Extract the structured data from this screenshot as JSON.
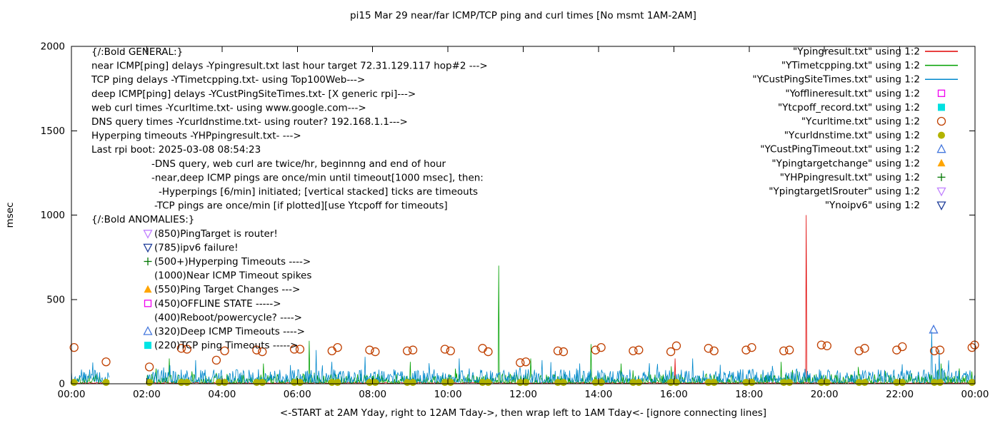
{
  "chart_data": {
    "type": "line",
    "title": "pi15 Mar 29 near/far ICMP/TCP ping and curl times [No msmt 1AM-2AM]",
    "xlabel": "<-START at 2AM Yday, right to 12AM Tday->, then wrap left to 1AM Tday<- [ignore connecting lines]",
    "ylabel": "msec",
    "xlim": [
      0,
      24
    ],
    "ylim": [
      0,
      2000
    ],
    "y_ticks": [
      0,
      500,
      1000,
      1500,
      2000
    ],
    "x_ticks": [
      {
        "pos": 0,
        "label": "00:00"
      },
      {
        "pos": 2,
        "label": "02:00"
      },
      {
        "pos": 4,
        "label": "04:00"
      },
      {
        "pos": 6,
        "label": "06:00"
      },
      {
        "pos": 8,
        "label": "08:00"
      },
      {
        "pos": 10,
        "label": "10:00"
      },
      {
        "pos": 12,
        "label": "12:00"
      },
      {
        "pos": 14,
        "label": "14:00"
      },
      {
        "pos": 16,
        "label": "16:00"
      },
      {
        "pos": 18,
        "label": "18:00"
      },
      {
        "pos": 20,
        "label": "20:00"
      },
      {
        "pos": 22,
        "label": "22:00"
      },
      {
        "pos": 24,
        "label": "00:00"
      }
    ],
    "segments": [
      [
        0,
        1
      ],
      [
        2,
        24
      ]
    ],
    "legend": [
      {
        "label": "\"Ypingresult.txt\" using 1:2",
        "color": "#e00000",
        "marker": "line"
      },
      {
        "label": "\"YTimetcpping.txt\" using 1:2",
        "color": "#00a000",
        "marker": "line"
      },
      {
        "label": "\"YCustPingSiteTimes.txt\" using 1:2",
        "color": "#0088cc",
        "marker": "line"
      },
      {
        "label": "\"Yofflineresult.txt\" using 1:2",
        "color": "#f000f0",
        "marker": "square-open"
      },
      {
        "label": "\"Ytcpoff_record.txt\" using 1:2",
        "color": "#00e0e0",
        "marker": "square-filled"
      },
      {
        "label": "\"Ycurltime.txt\" using 1:2",
        "color": "#c04000",
        "marker": "circle-open"
      },
      {
        "label": "\"Ycurldnstime.txt\" using 1:2",
        "color": "#b2b300",
        "marker": "circle-filled"
      },
      {
        "label": "\"YCustPingTimeout.txt\" using 1:2",
        "color": "#4477dd",
        "marker": "triangle-up-open"
      },
      {
        "label": "\"Ypingtargetchange\" using 1:2",
        "color": "#ffa500",
        "marker": "triangle-up-filled"
      },
      {
        "label": "\"YHPpingresult.txt\" using 1:2",
        "color": "#007700",
        "marker": "plus"
      },
      {
        "label": "\"YpingtargetISrouter\" using 1:2",
        "color": "#c080ff",
        "marker": "triangle-down-open"
      },
      {
        "label": "\"Ynoipv6\" using 1:2",
        "color": "#1f3d99",
        "marker": "triangle-down-open"
      }
    ],
    "noise_series": [
      {
        "name": "Ypingresult",
        "color": "#e00000",
        "base": 2,
        "amp": 6,
        "pow": 1.5,
        "burst_p": 0.01,
        "burst": 10,
        "seed": 101,
        "spikes": [
          [
            16.03,
            150
          ],
          [
            19.52,
            1000
          ]
        ]
      },
      {
        "name": "YTimetcpping",
        "color": "#00a000",
        "base": 3,
        "amp": 55,
        "pow": 2.6,
        "burst_p": 0.05,
        "burst": 50,
        "seed": 202,
        "spikes": [
          [
            2.6,
            150
          ],
          [
            5.1,
            120
          ],
          [
            6.32,
            255
          ],
          [
            9.0,
            130
          ],
          [
            11.35,
            700
          ],
          [
            12.2,
            150
          ],
          [
            13.8,
            235
          ],
          [
            14.6,
            120
          ],
          [
            18.85,
            130
          ],
          [
            20.9,
            100
          ],
          [
            23.1,
            120
          ]
        ]
      },
      {
        "name": "YCustPingSiteTimes",
        "color": "#0088cc",
        "base": 6,
        "amp": 80,
        "pow": 2.0,
        "burst_p": 0.06,
        "burst": 60,
        "seed": 303,
        "spikes": [
          [
            3.3,
            140
          ],
          [
            6.5,
            200
          ],
          [
            7.8,
            160
          ],
          [
            10.3,
            150
          ],
          [
            12.5,
            140
          ],
          [
            16.5,
            150
          ],
          [
            22.85,
            310
          ],
          [
            23.05,
            200
          ]
        ]
      }
    ],
    "point_series": [
      {
        "name": "Ycurltime",
        "color": "#c04000",
        "marker": "circle-open",
        "points": [
          [
            0.07,
            215
          ],
          [
            0.92,
            130
          ],
          [
            2.07,
            100
          ],
          [
            2.92,
            210
          ],
          [
            3.07,
            205
          ],
          [
            3.85,
            140
          ],
          [
            4.07,
            195
          ],
          [
            4.92,
            200
          ],
          [
            5.07,
            190
          ],
          [
            5.92,
            205
          ],
          [
            6.07,
            205
          ],
          [
            6.92,
            195
          ],
          [
            7.07,
            215
          ],
          [
            7.92,
            200
          ],
          [
            8.07,
            190
          ],
          [
            8.92,
            195
          ],
          [
            9.07,
            200
          ],
          [
            9.92,
            205
          ],
          [
            10.07,
            195
          ],
          [
            10.92,
            210
          ],
          [
            11.07,
            190
          ],
          [
            11.92,
            125
          ],
          [
            12.07,
            130
          ],
          [
            12.92,
            195
          ],
          [
            13.07,
            190
          ],
          [
            13.92,
            200
          ],
          [
            14.07,
            215
          ],
          [
            14.92,
            195
          ],
          [
            15.07,
            200
          ],
          [
            15.92,
            190
          ],
          [
            16.07,
            225
          ],
          [
            16.92,
            210
          ],
          [
            17.07,
            195
          ],
          [
            17.92,
            200
          ],
          [
            18.07,
            215
          ],
          [
            18.92,
            195
          ],
          [
            19.07,
            200
          ],
          [
            19.92,
            230
          ],
          [
            20.07,
            225
          ],
          [
            20.92,
            195
          ],
          [
            21.07,
            210
          ],
          [
            21.92,
            200
          ],
          [
            22.07,
            220
          ],
          [
            22.92,
            195
          ],
          [
            23.07,
            200
          ],
          [
            23.92,
            215
          ],
          [
            23.99,
            230
          ]
        ]
      },
      {
        "name": "Ycurldnstime",
        "color": "#b2b300",
        "marker": "circle-filled",
        "points": [
          [
            0.07,
            8
          ],
          [
            0.92,
            8
          ],
          [
            2.07,
            8
          ],
          [
            2.92,
            8
          ],
          [
            3.07,
            8
          ],
          [
            3.92,
            8
          ],
          [
            4.07,
            8
          ],
          [
            4.92,
            8
          ],
          [
            5.07,
            8
          ],
          [
            5.92,
            8
          ],
          [
            6.07,
            8
          ],
          [
            6.92,
            8
          ],
          [
            7.07,
            8
          ],
          [
            7.92,
            8
          ],
          [
            8.07,
            8
          ],
          [
            8.92,
            8
          ],
          [
            9.07,
            8
          ],
          [
            9.92,
            8
          ],
          [
            10.07,
            8
          ],
          [
            10.92,
            8
          ],
          [
            11.07,
            8
          ],
          [
            11.92,
            8
          ],
          [
            12.07,
            8
          ],
          [
            12.92,
            8
          ],
          [
            13.07,
            8
          ],
          [
            13.92,
            8
          ],
          [
            14.07,
            8
          ],
          [
            14.92,
            8
          ],
          [
            15.07,
            8
          ],
          [
            15.92,
            8
          ],
          [
            16.07,
            8
          ],
          [
            16.92,
            8
          ],
          [
            17.07,
            8
          ],
          [
            17.92,
            8
          ],
          [
            18.07,
            8
          ],
          [
            18.92,
            8
          ],
          [
            19.07,
            8
          ],
          [
            19.92,
            8
          ],
          [
            20.07,
            8
          ],
          [
            20.92,
            8
          ],
          [
            21.07,
            8
          ],
          [
            21.92,
            8
          ],
          [
            22.07,
            8
          ],
          [
            22.92,
            8
          ],
          [
            23.07,
            8
          ],
          [
            23.92,
            8
          ]
        ]
      },
      {
        "name": "YCustPingTimeout",
        "color": "#4477dd",
        "marker": "triangle-up-open",
        "points": [
          [
            22.9,
            320
          ]
        ]
      }
    ]
  },
  "annotations": {
    "general": {
      "header": "{/:Bold GENERAL:}",
      "lines": [
        {
          "text": "near ICMP[ping] delays -Ypingresult.txt last hour target 72.31.129.117 hop#2 --->",
          "indent": 0
        },
        {
          "text": "TCP ping delays -YTimetcpping.txt- using Top100Web--->",
          "indent": 0
        },
        {
          "text": "deep ICMP[ping] delays -YCustPingSiteTimes.txt- [X generic rpi]--->",
          "indent": 0
        },
        {
          "text": "web curl times -Ycurltime.txt- using www.google.com--->",
          "indent": 0
        },
        {
          "text": "DNS query times -Ycurldnstime.txt- using router? 192.168.1.1--->",
          "indent": 0
        },
        {
          "text": "Hyperping timeouts -YHPpingresult.txt- --->",
          "indent": 0
        },
        {
          "text": "Last rpi boot: 2025-03-08 08:54:23",
          "indent": 0
        },
        {
          "text": "-DNS query, web curl are twice/hr, beginnng and end of hour",
          "indent": 84
        },
        {
          "text": "-near,deep ICMP pings are once/min until timeout[1000 msec], then:",
          "indent": 84
        },
        {
          "text": "-Hyperpings [6/min] initiated; [vertical stacked] ticks are timeouts",
          "indent": 94
        },
        {
          "text": "-TCP pings are once/min [if plotted][use Ytcpoff for timeouts]",
          "indent": 88
        }
      ]
    },
    "anomalies": {
      "header": "{/:Bold ANOMALIES:}",
      "items": [
        {
          "marker": "triangle-down-open",
          "color": "#c080ff",
          "text": "(850)PingTarget is router!"
        },
        {
          "marker": "triangle-down-open",
          "color": "#1f3d99",
          "text": "(785)ipv6 failure!"
        },
        {
          "marker": "plus",
          "color": "#007700",
          "text": "(500+)Hyperping Timeouts ---->"
        },
        {
          "marker": null,
          "color": "#000000",
          "text": "(1000)Near ICMP Timeout spikes"
        },
        {
          "marker": "triangle-up-filled",
          "color": "#ffa500",
          "text": "(550)Ping Target Changes --->"
        },
        {
          "marker": "square-open",
          "color": "#f000f0",
          "text": "(450)OFFLINE STATE ----->"
        },
        {
          "marker": null,
          "color": "#000000",
          "text": "(400)Reboot/powercycle? ---->"
        },
        {
          "marker": "triangle-up-open",
          "color": "#4477dd",
          "text": "(320)Deep ICMP Timeouts ---->"
        },
        {
          "marker": "square-filled",
          "color": "#00e5e5",
          "text": "(220)TCP ping Timeouts ----->"
        }
      ]
    }
  }
}
